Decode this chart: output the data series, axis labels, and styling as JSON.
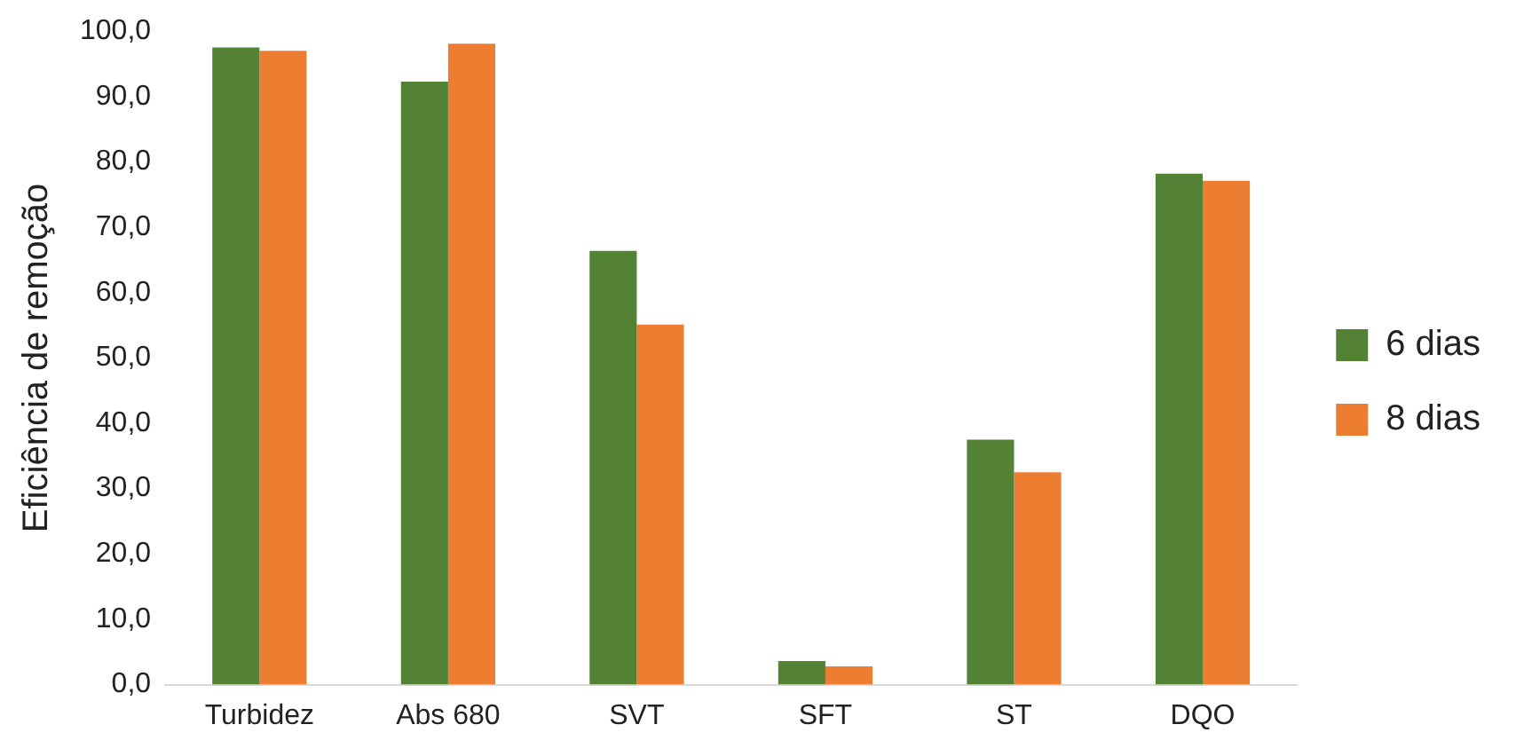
{
  "chart_data": {
    "type": "bar",
    "ylabel": "Eficiência de remoção",
    "categories": [
      "Turbidez",
      "Abs 680",
      "SVT",
      "SFT",
      "ST",
      "DQO"
    ],
    "series": [
      {
        "name": "6 dias",
        "color": "#548235",
        "values": [
          97.5,
          92.3,
          66.4,
          3.6,
          37.5,
          78.2
        ]
      },
      {
        "name": "8 dias",
        "color": "#ed7d31",
        "values": [
          97.0,
          98.1,
          55.1,
          2.8,
          32.5,
          77.1
        ]
      }
    ],
    "ylim": [
      0,
      100
    ],
    "yticks": [
      {
        "value": 0,
        "label": "0,0"
      },
      {
        "value": 10,
        "label": "10,0"
      },
      {
        "value": 20,
        "label": "20,0"
      },
      {
        "value": 30,
        "label": "30,0"
      },
      {
        "value": 40,
        "label": "40,0"
      },
      {
        "value": 50,
        "label": "50,0"
      },
      {
        "value": 60,
        "label": "60,0"
      },
      {
        "value": 70,
        "label": "70,0"
      },
      {
        "value": 80,
        "label": "80,0"
      },
      {
        "value": 90,
        "label": "90,0"
      },
      {
        "value": 100,
        "label": "100,0"
      }
    ],
    "grid": false,
    "legend": "right"
  }
}
